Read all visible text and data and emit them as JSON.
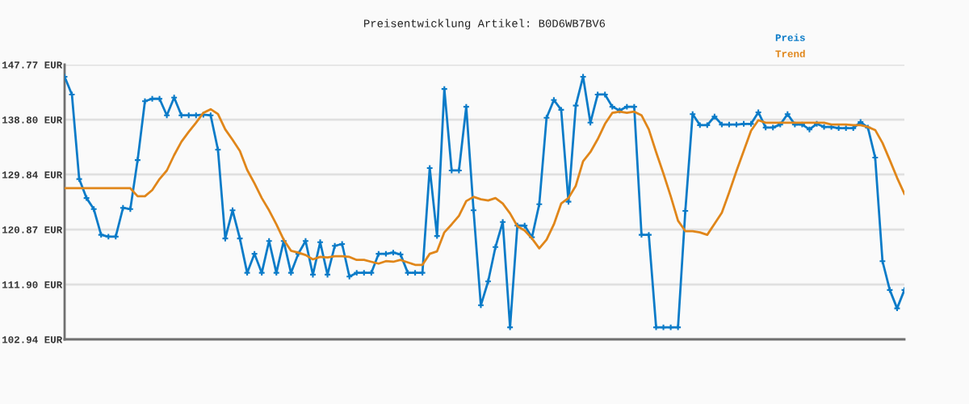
{
  "chart_data": {
    "type": "line",
    "title": "Preisentwicklung Artikel: B0D6WB7BV6",
    "categories": [
      null,
      null,
      null,
      null,
      null,
      null,
      null,
      null,
      null,
      null,
      null,
      null,
      null,
      null,
      null,
      null,
      null,
      null,
      null,
      null,
      null,
      null,
      null,
      null,
      null,
      null,
      null,
      null,
      null,
      null,
      null,
      null,
      null,
      null,
      null,
      null,
      null,
      null,
      null,
      null,
      null,
      null,
      null,
      null,
      null,
      null,
      null,
      null,
      null,
      null,
      null,
      null,
      null,
      null,
      null,
      null,
      null,
      null,
      null,
      null,
      null,
      null,
      null,
      null,
      null,
      null,
      null,
      null,
      null,
      null,
      null,
      null,
      null,
      null,
      null,
      null,
      null,
      null,
      null,
      null,
      null,
      null,
      null,
      null,
      null,
      null,
      null,
      null,
      null,
      null,
      null,
      null,
      null,
      null,
      null,
      null,
      null,
      null,
      null,
      null,
      null,
      null,
      null,
      null,
      null,
      null,
      null,
      null,
      null,
      null,
      null,
      null,
      null,
      null,
      null,
      null
    ],
    "series": [
      {
        "name": "Preis",
        "color": "#0a7bc8",
        "marker": "cross",
        "values": [
          145.8,
          142.9,
          129.1,
          126.0,
          124.2,
          120.0,
          119.7,
          119.7,
          124.4,
          124.2,
          132.2,
          141.8,
          142.2,
          142.2,
          139.5,
          142.4,
          139.5,
          139.5,
          139.5,
          139.6,
          139.5,
          133.9,
          119.4,
          124.0,
          119.4,
          113.8,
          116.9,
          113.8,
          119.0,
          113.8,
          119.0,
          113.8,
          116.9,
          119.0,
          113.5,
          118.8,
          113.5,
          118.2,
          118.5,
          113.2,
          113.8,
          113.8,
          113.8,
          116.9,
          116.9,
          117.1,
          116.8,
          113.8,
          113.8,
          113.8,
          130.9,
          119.8,
          143.8,
          130.5,
          130.5,
          140.9,
          124.0,
          108.5,
          112.4,
          118.0,
          122.1,
          104.9,
          121.5,
          121.5,
          119.6,
          125.0,
          139.1,
          142.0,
          140.4,
          125.4,
          141.1,
          145.8,
          138.3,
          142.9,
          142.9,
          140.9,
          140.3,
          140.9,
          140.9,
          120.0,
          120.0,
          104.9,
          104.9,
          104.9,
          104.9,
          123.9,
          139.7,
          137.9,
          137.9,
          139.3,
          138.0,
          138.0,
          138.0,
          138.1,
          138.1,
          140.0,
          137.5,
          137.5,
          138.0,
          139.7,
          138.0,
          138.0,
          137.2,
          138.1,
          137.6,
          137.6,
          137.4,
          137.4,
          137.4,
          138.4,
          137.5,
          132.6,
          115.7,
          111.0,
          108.0,
          111.0
        ]
      },
      {
        "name": "Trend",
        "color": "#e0861a",
        "marker": "none",
        "values": [
          127.6,
          127.6,
          127.6,
          127.6,
          127.6,
          127.6,
          127.6,
          127.6,
          127.6,
          127.6,
          126.3,
          126.3,
          127.3,
          129.1,
          130.5,
          133.0,
          135.2,
          136.8,
          138.3,
          139.9,
          140.5,
          139.7,
          137.2,
          135.5,
          133.7,
          130.6,
          128.4,
          126.0,
          124.0,
          121.7,
          119.2,
          117.4,
          117.1,
          116.7,
          116.0,
          116.4,
          116.3,
          116.5,
          116.5,
          116.4,
          115.9,
          115.9,
          115.6,
          115.3,
          115.7,
          115.6,
          115.9,
          115.5,
          115.1,
          115.1,
          116.9,
          117.3,
          120.4,
          121.7,
          123.1,
          125.5,
          126.2,
          125.8,
          125.6,
          126.0,
          125.1,
          123.5,
          121.4,
          120.7,
          119.4,
          117.8,
          119.2,
          121.7,
          125.1,
          126.0,
          128.0,
          132.0,
          133.5,
          135.6,
          138.1,
          139.9,
          140.1,
          139.9,
          140.1,
          139.5,
          137.2,
          133.5,
          130.0,
          126.3,
          122.3,
          120.6,
          120.6,
          120.4,
          120.0,
          121.8,
          123.6,
          126.9,
          130.4,
          133.7,
          137.0,
          138.7,
          138.3,
          138.3,
          138.3,
          138.3,
          138.3,
          138.3,
          138.3,
          138.3,
          138.3,
          138.0,
          138.0,
          138.0,
          137.9,
          137.9,
          137.6,
          137.1,
          135.0,
          132.2,
          129.3,
          126.7
        ]
      }
    ],
    "ylim": [
      102.94,
      147.77
    ],
    "yticks": [
      {
        "value": 102.94,
        "label": "102.94 EUR"
      },
      {
        "value": 111.9,
        "label": "111.90 EUR"
      },
      {
        "value": 120.87,
        "label": "120.87 EUR"
      },
      {
        "value": 129.84,
        "label": "129.84 EUR"
      },
      {
        "value": 138.8,
        "label": "138.80 EUR"
      },
      {
        "value": 147.77,
        "label": "147.77 EUR"
      }
    ],
    "grid": "y",
    "legend": "top right",
    "tick_labels": "y",
    "line_style": "solid"
  }
}
